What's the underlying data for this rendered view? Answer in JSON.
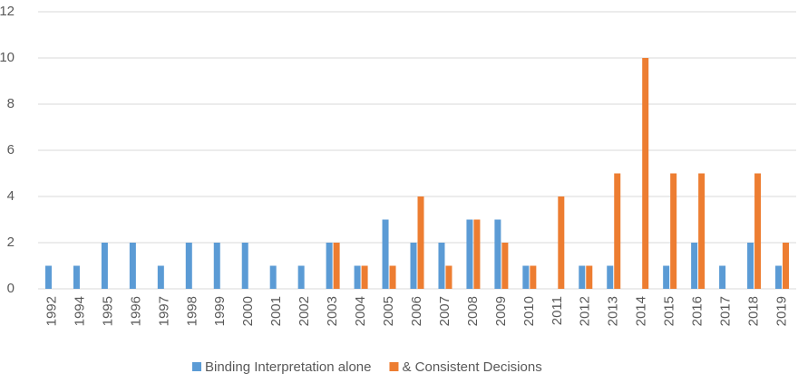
{
  "chart_data": {
    "type": "bar",
    "categories": [
      "1992",
      "1994",
      "1995",
      "1996",
      "1997",
      "1998",
      "1999",
      "2000",
      "2001",
      "2002",
      "2003",
      "2004",
      "2005",
      "2006",
      "2007",
      "2008",
      "2009",
      "2010",
      "2011",
      "2012",
      "2013",
      "2014",
      "2015",
      "2016",
      "2017",
      "2018",
      "2019"
    ],
    "series": [
      {
        "name": "Binding Interpretation alone",
        "color": "#5b9bd5",
        "values": [
          1,
          1,
          2,
          2,
          1,
          2,
          2,
          2,
          1,
          1,
          2,
          1,
          3,
          2,
          2,
          3,
          3,
          1,
          0,
          1,
          1,
          0,
          1,
          2,
          1,
          2,
          1
        ]
      },
      {
        "name": "& Consistent Decisions",
        "color": "#ed7d31",
        "values": [
          0,
          0,
          0,
          0,
          0,
          0,
          0,
          0,
          0,
          0,
          2,
          1,
          1,
          4,
          1,
          3,
          2,
          1,
          4,
          1,
          5,
          10,
          5,
          5,
          0,
          5,
          2
        ]
      }
    ],
    "ylim": [
      0,
      12
    ],
    "yticks": [
      0,
      2,
      4,
      6,
      8,
      10,
      12
    ],
    "grid": true,
    "legend": "bottom"
  }
}
